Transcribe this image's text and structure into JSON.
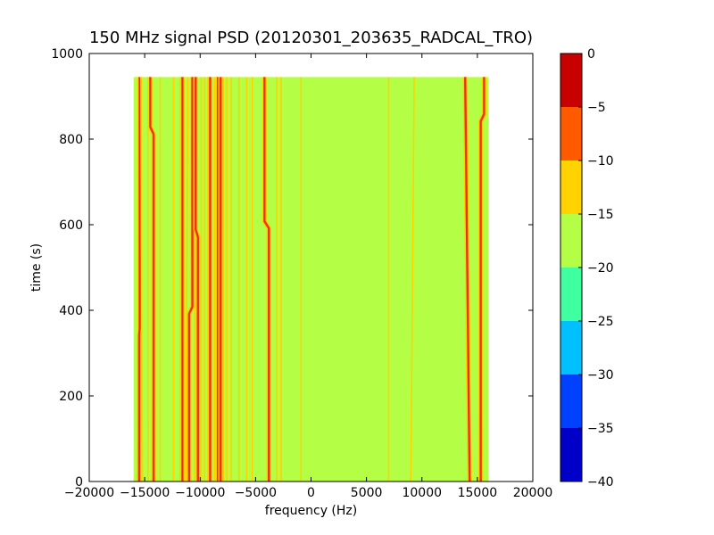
{
  "chart_data": {
    "type": "heatmap",
    "title": "150 MHz signal PSD (20120301_203635_RADCAL_TRO)",
    "xlabel": "frequency (Hz)",
    "ylabel": "time (s)",
    "xlim": [
      -20000,
      20000
    ],
    "ylim": [
      0,
      1000
    ],
    "xticks": [
      -20000,
      -15000,
      -10000,
      -5000,
      0,
      5000,
      10000,
      15000,
      20000
    ],
    "xtick_labels": [
      "−20000",
      "−15000",
      "−10000",
      "−5000",
      "0",
      "5000",
      "10000",
      "15000",
      "20000"
    ],
    "yticks": [
      0,
      200,
      400,
      600,
      800,
      1000
    ],
    "ytick_labels": [
      "0",
      "200",
      "400",
      "600",
      "800",
      "1000"
    ],
    "data_extent": {
      "x": [
        -16000,
        16000
      ],
      "y": [
        0,
        945
      ]
    },
    "background_level": [
      -20,
      -15
    ],
    "colorbar": {
      "levels": [
        -40,
        -35,
        -30,
        -25,
        -20,
        -15,
        -10,
        -5,
        0
      ],
      "tick_labels": [
        "−40",
        "−35",
        "−30",
        "−25",
        "−20",
        "−15",
        "−10",
        "−5",
        "0"
      ],
      "colors": [
        "#0000c8",
        "#0040ff",
        "#00c0ff",
        "#40ffa0",
        "#b4ff46",
        "#ffd200",
        "#ff5a00",
        "#c80000"
      ]
    },
    "features": [
      {
        "x": -15500,
        "x2": -15450,
        "level": "peak",
        "y_break": 350
      },
      {
        "x": -15200,
        "x2": -15350,
        "level": "mid"
      },
      {
        "x": -14700,
        "level": "mid"
      },
      {
        "x": -14200,
        "x2": -14500,
        "level": "peak",
        "y_break": 820
      },
      {
        "x": -13600,
        "level": "mid"
      },
      {
        "x": -12400,
        "level": "mid"
      },
      {
        "x": -11800,
        "level": "mid"
      },
      {
        "x": -11600,
        "level": "peak"
      },
      {
        "x": -11300,
        "x2": -11100,
        "level": "mid"
      },
      {
        "x": -11000,
        "x2": -10700,
        "level": "peak",
        "y_break": 400
      },
      {
        "x": -10500,
        "level": "mid"
      },
      {
        "x": -10200,
        "x2": -10400,
        "level": "peak",
        "y_break": 580
      },
      {
        "x": -9900,
        "level": "mid"
      },
      {
        "x": -9600,
        "level": "mid"
      },
      {
        "x": -9300,
        "level": "mid"
      },
      {
        "x": -9100,
        "level": "peak"
      },
      {
        "x": -8700,
        "level": "mid"
      },
      {
        "x": -8400,
        "level": "peak"
      },
      {
        "x": -8150,
        "level": "peak"
      },
      {
        "x": -7900,
        "level": "mid"
      },
      {
        "x": -7600,
        "level": "mid"
      },
      {
        "x": -7200,
        "level": "mid"
      },
      {
        "x": -6500,
        "level": "mid"
      },
      {
        "x": -5800,
        "level": "mid"
      },
      {
        "x": -5300,
        "level": "mid"
      },
      {
        "x": -3800,
        "x2": -4200,
        "level": "peak",
        "y_break": 600
      },
      {
        "x": -3100,
        "level": "mid"
      },
      {
        "x": -2700,
        "level": "mid"
      },
      {
        "x": -900,
        "level": "mid"
      },
      {
        "x": 7000,
        "level": "mid"
      },
      {
        "x": 9000,
        "x2": 9300,
        "level": "mid"
      },
      {
        "x": 14300,
        "x2": 13900,
        "level": "peak"
      },
      {
        "x": 15300,
        "x2": 15600,
        "level": "peak",
        "y_break": 850
      }
    ]
  }
}
